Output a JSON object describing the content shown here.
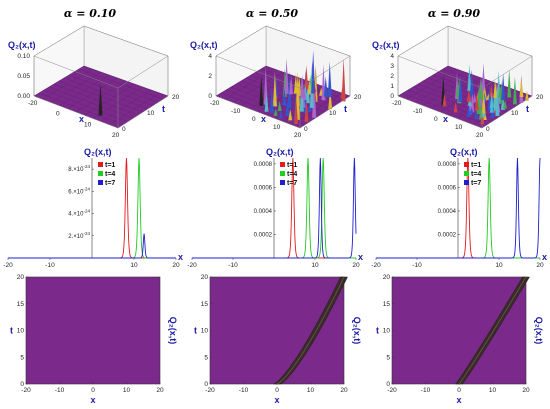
{
  "colors": {
    "surface": "#7b2a8c",
    "surface_dark": "#5a1d68",
    "contour": "#7b2a8c",
    "t1": "#e41a1c",
    "t4": "#22cc22",
    "t7": "#1f1fd1",
    "label_blue": "#1a1aa8"
  },
  "chart_data": [
    {
      "type": "surface3d",
      "panel": "top-left",
      "title": "α = 0.10",
      "zlabel": "Q₂(x,t)",
      "xlabel": "x",
      "ylabel": "t",
      "xticks": [
        "-20",
        "0",
        "10",
        "20"
      ],
      "yticks": [
        "0",
        "10",
        "20"
      ],
      "zticks": [
        "0.00",
        "0.05",
        "0.10"
      ],
      "xlim": [
        -20,
        20
      ],
      "ylim": [
        0,
        20
      ],
      "zlim": [
        0,
        0.1
      ]
    },
    {
      "type": "surface3d",
      "panel": "top-middle",
      "title": "α = 0.50",
      "zlabel": "Q₂(x,t)",
      "xlabel": "x",
      "ylabel": "t",
      "xticks": [
        "-20",
        "-10",
        "0",
        "10",
        "20"
      ],
      "yticks": [
        "0",
        "10",
        "20"
      ],
      "zticks": [
        "0",
        "2",
        "4"
      ],
      "xlim": [
        -20,
        20
      ],
      "ylim": [
        0,
        20
      ],
      "zlim": [
        0,
        4
      ]
    },
    {
      "type": "surface3d",
      "panel": "top-right",
      "title": "α = 0.90",
      "zlabel": "Q₂(x,t)",
      "xlabel": "x",
      "ylabel": "t",
      "xticks": [
        "-20",
        "-10",
        "0",
        "10",
        "20"
      ],
      "yticks": [
        "0",
        "10",
        "20"
      ],
      "zticks": [
        "0",
        "1",
        "2",
        "3",
        "4"
      ],
      "xlim": [
        -20,
        20
      ],
      "ylim": [
        0,
        20
      ],
      "zlim": [
        0,
        4
      ]
    },
    {
      "type": "line",
      "panel": "mid-left",
      "ylabel": "Q₂(x,t)",
      "xlabel": "x",
      "xlim": [
        -20,
        20
      ],
      "ylim": [
        0,
        9e-24
      ],
      "xticks": [
        -20,
        -10,
        10,
        20
      ],
      "yticks": [
        {
          "value": 2e-24,
          "mant": "2.",
          "exp": "-24"
        },
        {
          "value": 4e-24,
          "mant": "4.",
          "exp": "-24"
        },
        {
          "value": 6e-24,
          "mant": "6.",
          "exp": "-24"
        },
        {
          "value": 8e-24,
          "mant": "8.",
          "exp": "-24"
        }
      ],
      "legend": [
        "t=1",
        "t=4",
        "t=7"
      ],
      "series": [
        {
          "name": "t=1",
          "peak_x": 8.2,
          "peak_y": 9e-24,
          "width": 0.35
        },
        {
          "name": "t=4",
          "peak_x": 11.2,
          "peak_y": 9e-24,
          "width": 0.35
        },
        {
          "name": "t=7",
          "peak_x": 12.4,
          "peak_y": 2.2e-24,
          "width": 0.25
        }
      ]
    },
    {
      "type": "line",
      "panel": "mid-middle",
      "ylabel": "Q₂(x,t)",
      "xlabel": "x",
      "xlim": [
        -20,
        20
      ],
      "ylim": [
        0,
        0.00085
      ],
      "xticks": [
        -20,
        -10,
        10,
        20
      ],
      "yticks": [
        {
          "value": 0.0002,
          "label": "0.0002"
        },
        {
          "value": 0.0004,
          "label": "0.0004"
        },
        {
          "value": 0.0006,
          "label": "0.0006"
        },
        {
          "value": 0.0008,
          "label": "0.0008"
        }
      ],
      "legend": [
        "t=1",
        "t=4",
        "t=7"
      ],
      "series": [
        {
          "name": "t=1",
          "peaks": [
            {
              "x": 4.6,
              "y": 0.00085,
              "w": 0.35
            }
          ]
        },
        {
          "name": "t=4",
          "peaks": [
            {
              "x": 8.3,
              "y": 0.00085,
              "w": 0.35
            },
            {
              "x": 12.0,
              "y": 0.00085,
              "w": 0.35
            }
          ]
        },
        {
          "name": "t=7",
          "peaks": [
            {
              "x": 11.3,
              "y": 0.00085,
              "w": 0.3
            },
            {
              "x": 19.6,
              "y": 0.00085,
              "w": 0.3
            }
          ]
        }
      ]
    },
    {
      "type": "line",
      "panel": "mid-right",
      "ylabel": "Q₂(x,t)",
      "xlabel": "x",
      "xlim": [
        -20,
        20
      ],
      "ylim": [
        0,
        0.00085
      ],
      "xticks": [
        -20,
        -10,
        10,
        20
      ],
      "yticks": [
        {
          "value": 0.0002,
          "label": "0.0002"
        },
        {
          "value": 0.0004,
          "label": "0.0004"
        },
        {
          "value": 0.0006,
          "label": "0.0006"
        },
        {
          "value": 0.0008,
          "label": "0.0008"
        }
      ],
      "legend": [
        "t=1",
        "t=4",
        "t=7"
      ],
      "series": [
        {
          "name": "t=1",
          "peaks": [
            {
              "x": 2.4,
              "y": 0.00085,
              "w": 0.35
            }
          ]
        },
        {
          "name": "t=4",
          "peaks": [
            {
              "x": 7.6,
              "y": 0.00085,
              "w": 0.35
            }
          ]
        },
        {
          "name": "t=7",
          "peaks": [
            {
              "x": 14.5,
              "y": 0.00085,
              "w": 0.3
            },
            {
              "x": 20.0,
              "y": 0.00085,
              "w": 0.3
            }
          ]
        }
      ]
    },
    {
      "type": "heatmap",
      "panel": "bottom-left",
      "xlabel": "x",
      "ylabel": "t",
      "side_label": "Q₂(x,t)",
      "xlim": [
        -20,
        20
      ],
      "ylim": [
        0,
        20
      ],
      "xticks": [
        -20,
        -10,
        0,
        10,
        20
      ],
      "yticks": [
        0,
        5,
        10,
        15,
        20
      ],
      "bands": []
    },
    {
      "type": "heatmap",
      "panel": "bottom-middle",
      "xlabel": "x",
      "ylabel": "t",
      "side_label": "Q₂(x,t)",
      "xlim": [
        -20,
        20
      ],
      "ylim": [
        0,
        20
      ],
      "xticks": [
        -20,
        -10,
        0,
        10,
        20
      ],
      "yticks": [
        0,
        5,
        10,
        15,
        20
      ],
      "bands": [
        {
          "x0": 0,
          "t0": 0,
          "x1": 20,
          "t1": 20,
          "curv": 0.3
        }
      ]
    },
    {
      "type": "heatmap",
      "panel": "bottom-right",
      "xlabel": "x",
      "ylabel": "t",
      "side_label": "Q₂(x,t)",
      "xlim": [
        -20,
        20
      ],
      "ylim": [
        0,
        20
      ],
      "xticks": [
        -20,
        -10,
        0,
        10,
        20
      ],
      "yticks": [
        0,
        5,
        10,
        15,
        20
      ],
      "bands": [
        {
          "x0": 0,
          "t0": 0,
          "x1": 20,
          "t1": 20,
          "curv": 0.05
        }
      ]
    }
  ]
}
